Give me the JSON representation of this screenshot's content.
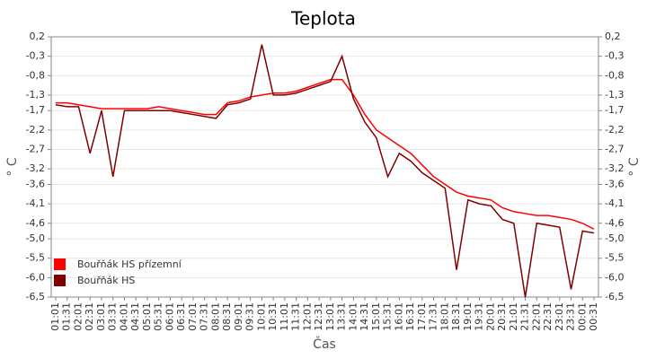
{
  "chart_data": {
    "type": "line",
    "title": "Teplota",
    "x_label": "Čas",
    "y_label": "° C",
    "categories": [
      "01:01",
      "01:31",
      "02:01",
      "02:31",
      "03:01",
      "03:31",
      "04:01",
      "04:31",
      "05:01",
      "05:31",
      "06:01",
      "06:31",
      "07:01",
      "07:31",
      "08:01",
      "08:31",
      "09:01",
      "09:31",
      "10:01",
      "10:31",
      "11:01",
      "11:31",
      "12:01",
      "12:31",
      "13:01",
      "13:31",
      "14:01",
      "14:31",
      "15:01",
      "15:31",
      "16:01",
      "16:31",
      "17:01",
      "17:31",
      "18:01",
      "18:31",
      "19:01",
      "19:31",
      "20:01",
      "20:31",
      "21:01",
      "21:31",
      "22:01",
      "22:31",
      "23:01",
      "23:31",
      "00:01",
      "00:31"
    ],
    "series": [
      {
        "name": "Bouřňák HS přízemní",
        "color": "#ff0000",
        "values": [
          -1.5,
          -1.5,
          -1.55,
          -1.6,
          -1.65,
          -1.65,
          -1.65,
          -1.65,
          -1.65,
          -1.6,
          -1.65,
          -1.7,
          -1.75,
          -1.8,
          -1.8,
          -1.5,
          -1.45,
          -1.35,
          -1.3,
          -1.25,
          -1.25,
          -1.2,
          -1.1,
          -1.0,
          -0.9,
          -0.9,
          -1.3,
          -1.8,
          -2.2,
          -2.4,
          -2.6,
          -2.8,
          -3.1,
          -3.4,
          -3.6,
          -3.8,
          -3.9,
          -3.95,
          -4.0,
          -4.2,
          -4.3,
          -4.35,
          -4.4,
          -4.4,
          -4.45,
          -4.5,
          -4.6,
          -4.75
        ]
      },
      {
        "name": "Bouřňák HS",
        "color": "#800000",
        "values": [
          -1.55,
          -1.6,
          -1.6,
          -2.8,
          -1.7,
          -3.4,
          -1.7,
          -1.7,
          -1.7,
          -1.7,
          -1.7,
          -1.75,
          -1.8,
          -1.85,
          -1.9,
          -1.55,
          -1.5,
          -1.4,
          0.0,
          -1.3,
          -1.3,
          -1.25,
          -1.15,
          -1.05,
          -0.95,
          -0.3,
          -1.4,
          -2.0,
          -2.4,
          -3.4,
          -2.8,
          -3.0,
          -3.3,
          -3.5,
          -3.7,
          -5.8,
          -4.0,
          -4.1,
          -4.15,
          -4.5,
          -4.6,
          -6.5,
          -4.6,
          -4.65,
          -4.7,
          -6.3,
          -4.8,
          -4.85
        ]
      }
    ],
    "ylim": [
      -6.5,
      0.2
    ],
    "yticks": [
      {
        "value": 0.2,
        "label": "0,2"
      },
      {
        "value": -0.3,
        "label": "-0,3"
      },
      {
        "value": -0.8,
        "label": "-0,8"
      },
      {
        "value": -1.3,
        "label": "-1,3"
      },
      {
        "value": -1.7,
        "label": "-1,7"
      },
      {
        "value": -2.2,
        "label": "-2,2"
      },
      {
        "value": -2.7,
        "label": "-2,7"
      },
      {
        "value": -3.2,
        "label": "-3,2"
      },
      {
        "value": -3.6,
        "label": "-3,6"
      },
      {
        "value": -4.1,
        "label": "-4,1"
      },
      {
        "value": -4.6,
        "label": "-4,6"
      },
      {
        "value": -5.0,
        "label": "-5,0"
      },
      {
        "value": -5.5,
        "label": "-5,5"
      },
      {
        "value": -6.0,
        "label": "-6,0"
      },
      {
        "value": -6.5,
        "label": "-6,5"
      }
    ],
    "grid": true,
    "legend": "lower left"
  }
}
